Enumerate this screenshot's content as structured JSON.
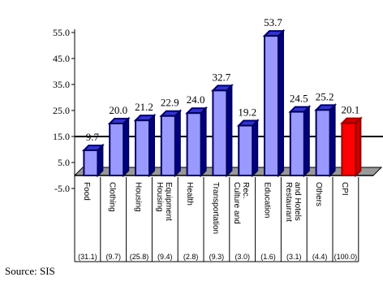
{
  "chart_data": {
    "type": "bar",
    "categories": [
      [
        "Food"
      ],
      [
        "Clothing"
      ],
      [
        "Housing"
      ],
      [
        "Housing",
        "Equipment"
      ],
      [
        "Health"
      ],
      [
        "Transportation"
      ],
      [
        "Culture and",
        "Rec."
      ],
      [
        "Education"
      ],
      [
        "Restaurant",
        "and Hotels"
      ],
      [
        "Others"
      ],
      [
        "CPI"
      ]
    ],
    "weights": [
      "(31.1)",
      "(9.7)",
      "(25.8)",
      "(9.4)",
      "(2.8)",
      "(9.3)",
      "(3.0)",
      "(1.6)",
      "(3.1)",
      "(4.4)",
      "(100.0)"
    ],
    "values": [
      9.7,
      20.0,
      21.2,
      22.9,
      24.0,
      32.7,
      19.2,
      53.7,
      24.5,
      25.2,
      20.1
    ],
    "value_labels": [
      "9.7",
      "20.0",
      "21.2",
      "22.9",
      "24.0",
      "32.7",
      "19.2",
      "53.7",
      "24.5",
      "25.2",
      "20.1"
    ],
    "yticks": [
      "55.0",
      "45.0",
      "35.0",
      "25.0",
      "15.0",
      "5.0",
      "-5.0"
    ],
    "ylim": [
      -5,
      55
    ],
    "highlight_index": 10,
    "colors": {
      "bar_front": "#9999ff",
      "bar_side": "#000080",
      "bar_top": "#3333cc",
      "highlight_front": "#ff0000",
      "highlight_side": "#cc0000",
      "floor": "#999999"
    },
    "reference_line_value": 15
  },
  "source": "Source: SIS"
}
